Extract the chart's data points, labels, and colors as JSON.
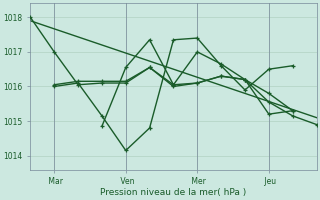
{
  "bg_color": "#cce8e0",
  "grid_color": "#aaccbb",
  "line_color": "#1a5c2a",
  "ylabel": "Pression niveau de la mer( hPa )",
  "ylim": [
    1013.6,
    1018.4
  ],
  "yticks": [
    1014,
    1015,
    1016,
    1017,
    1018
  ],
  "xtick_labels": [
    " Mar",
    " Ven",
    " Mer",
    " Jeu"
  ],
  "xtick_positions": [
    24,
    96,
    168,
    240
  ],
  "vline_positions": [
    24,
    96,
    168,
    240
  ],
  "xlim": [
    0,
    288
  ],
  "series": [
    {
      "x": [
        0,
        288
      ],
      "y": [
        1017.9,
        1015.1
      ],
      "marker": null,
      "lw": 1.0
    },
    {
      "x": [
        0,
        24,
        48,
        72,
        96,
        120,
        144,
        168,
        192,
        216,
        240,
        264
      ],
      "y": [
        1018.0,
        1017.0,
        1016.05,
        1016.1,
        1016.1,
        1016.55,
        1016.0,
        1016.1,
        1016.3,
        1016.2,
        1015.8,
        1015.3
      ],
      "marker": "+",
      "lw": 1.0
    },
    {
      "x": [
        24,
        48,
        72,
        96,
        120,
        144,
        168,
        192,
        216,
        240,
        264
      ],
      "y": [
        1016.0,
        1016.1,
        1015.15,
        1014.15,
        1014.8,
        1017.35,
        1017.4,
        1016.6,
        1015.9,
        1016.5,
        1016.6
      ],
      "marker": "+",
      "lw": 1.0
    },
    {
      "x": [
        24,
        48,
        72,
        96,
        120,
        144,
        168,
        192,
        216,
        240,
        264
      ],
      "y": [
        1016.05,
        1016.15,
        1016.15,
        1016.15,
        1016.55,
        1016.05,
        1016.1,
        1016.3,
        1016.2,
        1015.2,
        1015.3
      ],
      "marker": "+",
      "lw": 1.0
    },
    {
      "x": [
        72,
        96,
        120,
        144,
        168,
        192,
        216,
        240,
        264,
        288
      ],
      "y": [
        1014.85,
        1016.55,
        1017.35,
        1016.05,
        1017.0,
        1016.65,
        1016.2,
        1015.55,
        1015.15,
        1014.9
      ],
      "marker": "+",
      "lw": 1.0
    }
  ]
}
